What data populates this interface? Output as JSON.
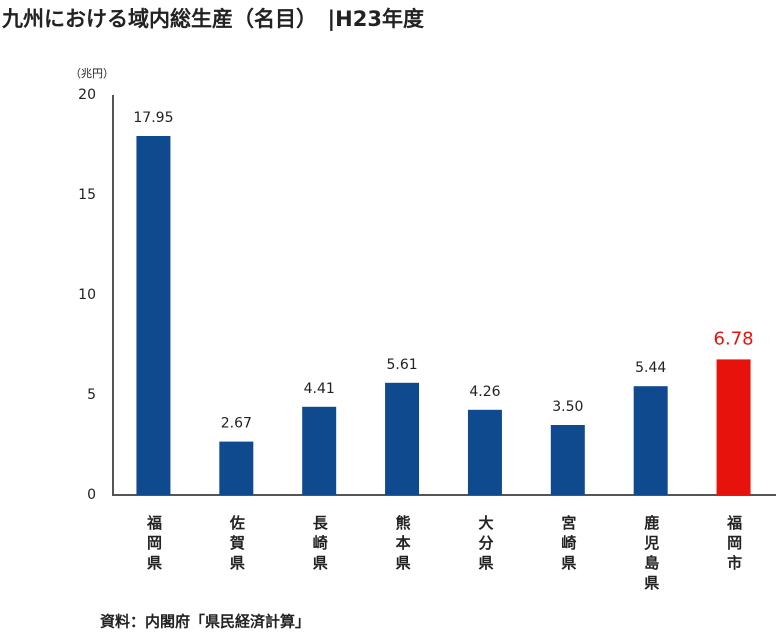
{
  "chart_data": {
    "type": "bar",
    "title": "九州における域内総生産（名目）　|H23年度",
    "y_unit": "（兆円）",
    "categories": [
      "福岡県",
      "佐賀県",
      "長崎県",
      "熊本県",
      "大分県",
      "宮崎県",
      "鹿児島県",
      "福岡市"
    ],
    "values": [
      17.95,
      2.67,
      4.41,
      5.61,
      4.26,
      3.5,
      5.44,
      6.78
    ],
    "value_labels": [
      "17.95",
      "2.67",
      "4.41",
      "5.61",
      "4.26",
      "3.50",
      "5.44",
      "6.78"
    ],
    "colors": [
      "#0f4a8f",
      "#0f4a8f",
      "#0f4a8f",
      "#0f4a8f",
      "#0f4a8f",
      "#0f4a8f",
      "#0f4a8f",
      "#e8120c"
    ],
    "ylim": [
      0,
      20
    ],
    "yticks": [
      0,
      5,
      10,
      15,
      20
    ],
    "grid": false,
    "source": "資料：内閣府「県民経済計算」"
  }
}
